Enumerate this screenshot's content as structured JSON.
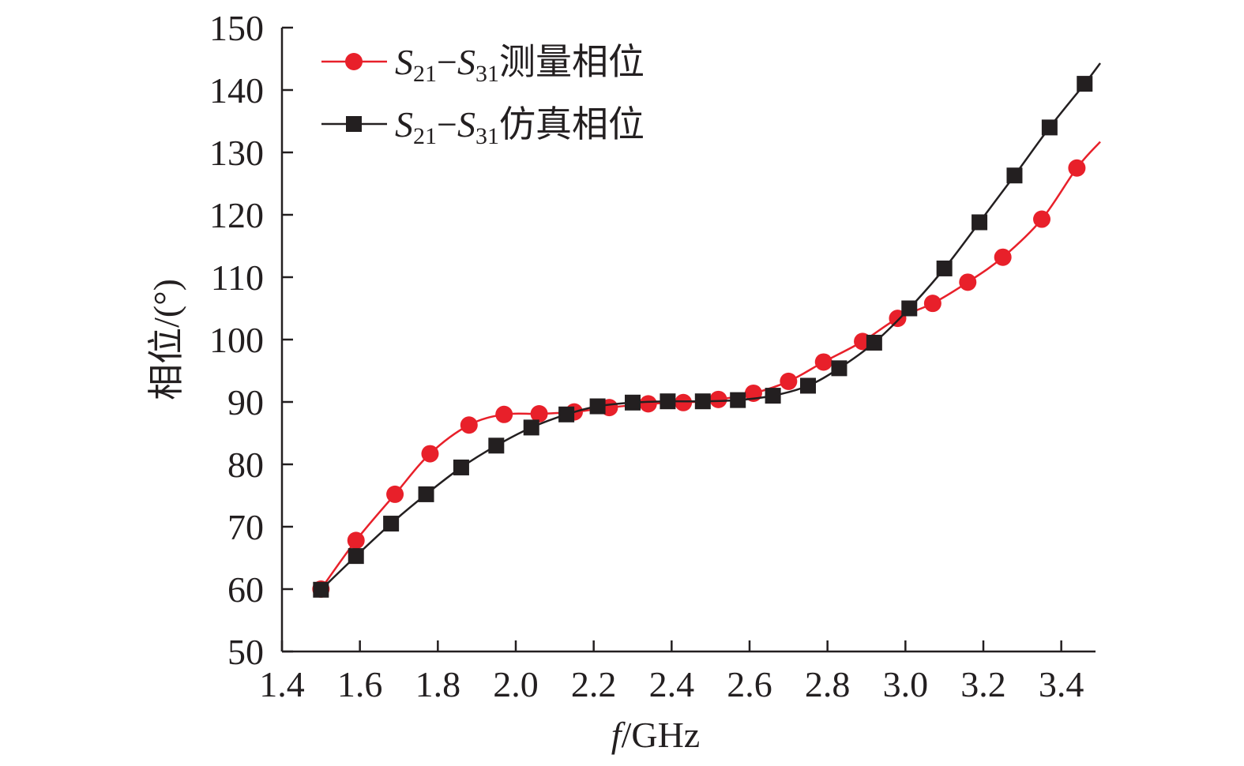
{
  "chart_data": {
    "type": "line",
    "xlabel_var": "f",
    "xlabel_unit": "/GHz",
    "ylabel": "相位/(°)",
    "xlim": [
      1.4,
      3.5
    ],
    "ylim": [
      50,
      150
    ],
    "x_ticks": [
      "1.4",
      "1.6",
      "1.8",
      "2.0",
      "2.2",
      "2.4",
      "2.6",
      "2.8",
      "3.0",
      "3.2",
      "3.4"
    ],
    "y_ticks": [
      "50",
      "60",
      "70",
      "80",
      "90",
      "100",
      "110",
      "120",
      "130",
      "140",
      "150"
    ],
    "legend_position": "top-left",
    "series": [
      {
        "legend_parts": {
          "s1": "S",
          "s1_sub": "21",
          "dash": "−",
          "s2": "S",
          "s2_sub": "31",
          "suffix": "测量相位"
        },
        "marker": "circle",
        "color": "#e8202a",
        "points": [
          [
            1.5,
            60.0
          ],
          [
            1.59,
            67.8
          ],
          [
            1.69,
            75.2
          ],
          [
            1.78,
            81.7
          ],
          [
            1.88,
            86.3
          ],
          [
            1.97,
            88.0
          ],
          [
            2.06,
            88.1
          ],
          [
            2.15,
            88.4
          ],
          [
            2.24,
            89.1
          ],
          [
            2.34,
            89.7
          ],
          [
            2.43,
            89.9
          ],
          [
            2.52,
            90.4
          ],
          [
            2.61,
            91.4
          ],
          [
            2.7,
            93.3
          ],
          [
            2.79,
            96.4
          ],
          [
            2.89,
            99.7
          ],
          [
            2.98,
            103.4
          ],
          [
            3.07,
            105.8
          ],
          [
            3.16,
            109.2
          ],
          [
            3.25,
            113.2
          ],
          [
            3.35,
            119.3
          ],
          [
            3.44,
            127.5
          ],
          [
            3.5,
            131.7
          ]
        ]
      },
      {
        "legend_parts": {
          "s1": "S",
          "s1_sub": "21",
          "dash": "−",
          "s2": "S",
          "s2_sub": "31",
          "suffix": "仿真相位"
        },
        "marker": "square",
        "color": "#231f20",
        "points": [
          [
            1.5,
            59.9
          ],
          [
            1.59,
            65.3
          ],
          [
            1.68,
            70.5
          ],
          [
            1.77,
            75.2
          ],
          [
            1.86,
            79.5
          ],
          [
            1.95,
            83.0
          ],
          [
            2.04,
            85.9
          ],
          [
            2.13,
            88.0
          ],
          [
            2.21,
            89.3
          ],
          [
            2.3,
            89.9
          ],
          [
            2.39,
            90.1
          ],
          [
            2.48,
            90.1
          ],
          [
            2.57,
            90.3
          ],
          [
            2.66,
            91.0
          ],
          [
            2.75,
            92.6
          ],
          [
            2.83,
            95.4
          ],
          [
            2.92,
            99.5
          ],
          [
            3.01,
            105.0
          ],
          [
            3.1,
            111.4
          ],
          [
            3.19,
            118.8
          ],
          [
            3.28,
            126.3
          ],
          [
            3.37,
            134.0
          ],
          [
            3.46,
            141.0
          ],
          [
            3.5,
            144.3
          ]
        ]
      }
    ]
  }
}
